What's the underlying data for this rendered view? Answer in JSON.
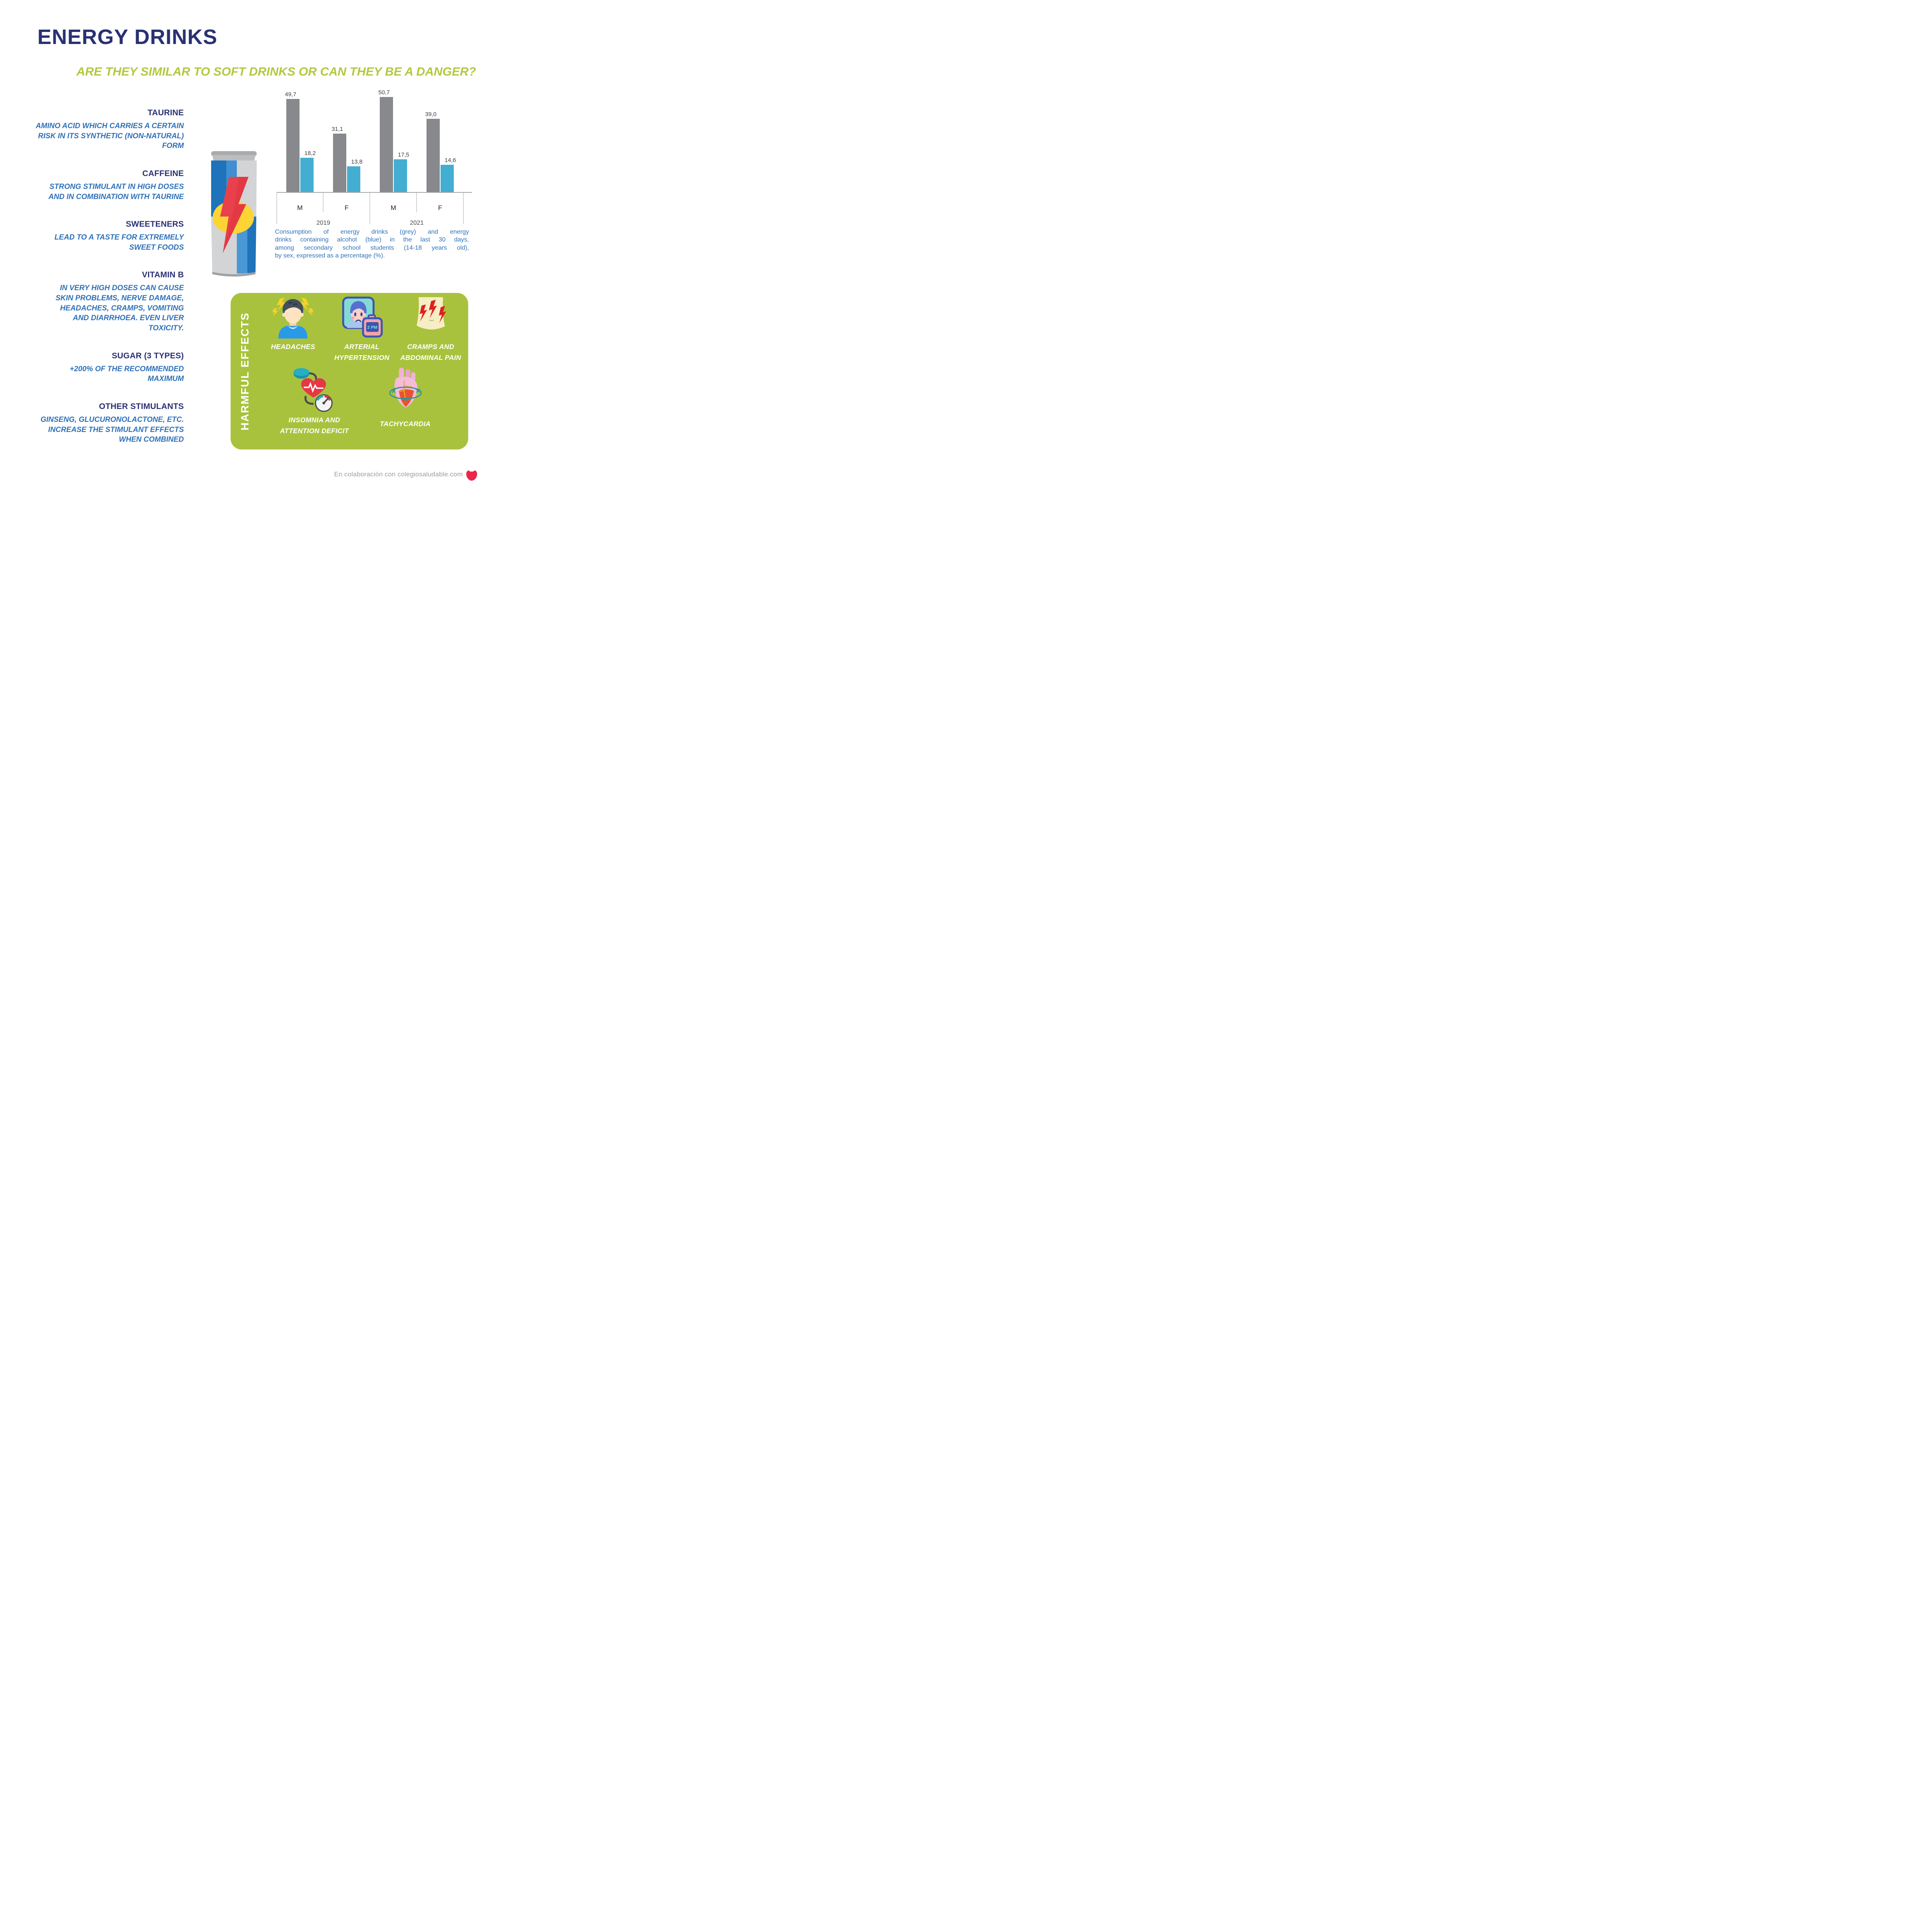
{
  "header": {
    "title": "ENERGY DRINKS",
    "subtitle": "ARE THEY SIMILAR TO SOFT DRINKS OR CAN THEY BE A DANGER?"
  },
  "ingredients": [
    {
      "heading": "TAURINE",
      "body": "AMINO ACID WHICH CARRIES A CERTAIN\nRISK IN ITS SYNTHETIC (NON-NATURAL)\nFORM"
    },
    {
      "heading": "CAFFEINE",
      "body": "STRONG STIMULANT IN HIGH DOSES\nAND IN COMBINATION WITH TAURINE"
    },
    {
      "heading": "SWEETENERS",
      "body": "LEAD TO A TASTE FOR EXTREMELY\nSWEET FOODS"
    },
    {
      "heading": "VITAMIN B",
      "body": "IN VERY HIGH DOSES CAN CAUSE\nSKIN PROBLEMS, NERVE DAMAGE,\nHEADACHES, CRAMPS, VOMITING\nAND DIARRHOEA. EVEN LIVER\nTOXICITY."
    },
    {
      "heading": "SUGAR (3 TYPES)",
      "body": "+200% OF THE RECOMMENDED\nMAXIMUM"
    },
    {
      "heading": "OTHER STIMULANTS",
      "body": "GINSENG, GLUCURONOLACTONE, ETC.\nINCREASE THE STIMULANT EFFECTS\nWHEN COMBINED"
    }
  ],
  "chart_data": {
    "type": "bar",
    "categories": [
      "M",
      "F",
      "M",
      "F"
    ],
    "year_groups": [
      {
        "label": "2019"
      },
      {
        "label": "2021"
      }
    ],
    "series": [
      {
        "name": "Energy drinks",
        "color": "#87898c",
        "values": [
          49.7,
          31.1,
          50.7,
          39.0
        ],
        "labels": [
          "49,7",
          "31,1",
          "50,7",
          "39,0"
        ]
      },
      {
        "name": "Energy drinks containing alcohol",
        "color": "#43aed1",
        "values": [
          18.2,
          13.8,
          17.5,
          14.6
        ],
        "labels": [
          "18,2",
          "13,8",
          "17,5",
          "14,6"
        ]
      }
    ],
    "ylim": [
      0,
      55
    ],
    "grid": false,
    "legend_position": "none (colors explained in caption)"
  },
  "chart_caption": "Consumption of energy drinks (grey) and energy\ndrinks containing alcohol (blue) in the last 30 days,\namong secondary school students (14-18 years old),\nby sex, expressed as a percentage (%).",
  "harmful_effects": {
    "title": "HARMFUL EFFECTS",
    "items": [
      {
        "label": "HEADACHES",
        "icon": "headache-icon"
      },
      {
        "label": "ARTERIAL HYPERTENSION",
        "icon": "blood-pressure-monitor-icon",
        "device_text": "2 PM"
      },
      {
        "label": "CRAMPS AND ABDOMINAL PAIN",
        "icon": "abdominal-pain-icon"
      },
      {
        "label": "INSOMNIA AND ATTENTION DEFICIT",
        "icon": "heart-rate-gauge-icon"
      },
      {
        "label": "TACHYCARDIA",
        "icon": "tachycardia-heart-icon"
      }
    ]
  },
  "footer": {
    "text": "En colaboración con colegiosaludable.com",
    "logo": "apple-logo"
  },
  "colors": {
    "title_navy": "#2a3173",
    "body_blue": "#2e71b8",
    "accent_green": "#b3c83f",
    "panel_green": "#a9c23d",
    "bar_grey": "#87898c",
    "bar_blue": "#43aed1",
    "footer_grey": "#9c9ea1",
    "logo_red": "#e9274a"
  }
}
